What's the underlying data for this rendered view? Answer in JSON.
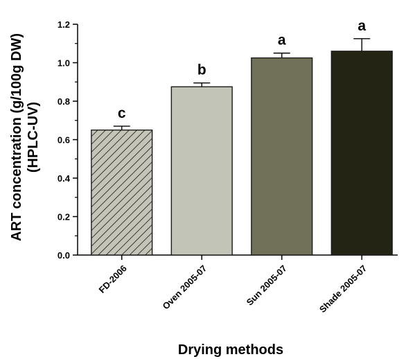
{
  "chart_data": {
    "type": "bar",
    "categories": [
      "FD-2006",
      "Oven 2005-07",
      "Sun 2005-07",
      "Shade 2005-07"
    ],
    "values": [
      0.65,
      0.875,
      1.025,
      1.06
    ],
    "errors": [
      0.02,
      0.02,
      0.025,
      0.065
    ],
    "significance": [
      "c",
      "b",
      "a",
      "a"
    ],
    "bar_colors": [
      "#c4c4b8",
      "#c2c4b8",
      "#717159",
      "#232414"
    ],
    "bar_patterns": [
      "hatch",
      "solid",
      "solid",
      "solid"
    ],
    "xlabel": "Drying methods",
    "ylabel_lines": [
      "ART concentration (g/100g DW)",
      "(HPLC-UV)"
    ],
    "ylim": [
      0,
      1.2
    ],
    "yticks": [
      "0.0",
      "0.2",
      "0.4",
      "0.6",
      "0.8",
      "1.0",
      "1.2"
    ],
    "grid": false,
    "legend": "none"
  }
}
